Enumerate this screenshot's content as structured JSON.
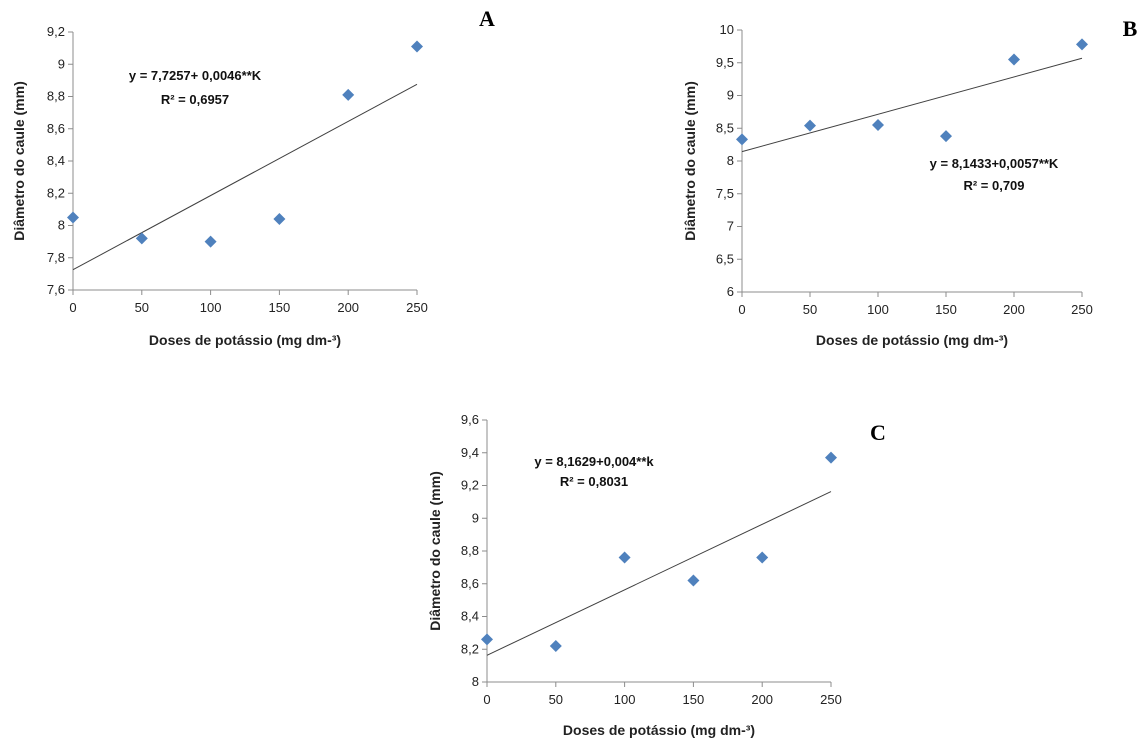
{
  "colors": {
    "marker": "#4f81bd",
    "trendline": "#404040",
    "axis": "#8c8c8c",
    "text": "#222222"
  },
  "chart_data": [
    {
      "type": "scatter",
      "panel": "A",
      "xlabel": "Doses de potássio (mg dm-³)",
      "ylabel": "Diâmetro do caule (mm)",
      "x_ticks": [
        "0",
        "50",
        "100",
        "150",
        "200",
        "250"
      ],
      "y_ticks": [
        "7,6",
        "7,8",
        "8",
        "8,2",
        "8,4",
        "8,6",
        "8,8",
        "9",
        "9,2"
      ],
      "xlim": [
        0,
        250
      ],
      "ylim": [
        7.6,
        9.2
      ],
      "x": [
        0,
        50,
        100,
        150,
        200,
        250
      ],
      "y": [
        8.05,
        7.92,
        7.9,
        8.04,
        8.81,
        9.11
      ],
      "trendline": {
        "intercept": 7.7257,
        "slope": 0.0046
      },
      "equation": "y = 7,7257+ 0,0046**K",
      "r2": "R² = 0,6957",
      "grid": false
    },
    {
      "type": "scatter",
      "panel": "B",
      "xlabel": "Doses de potássio (mg dm-³)",
      "ylabel": "Diâmetro do caule (mm)",
      "x_ticks": [
        "0",
        "50",
        "100",
        "150",
        "200",
        "250"
      ],
      "y_ticks": [
        "6",
        "6,5",
        "7",
        "7,5",
        "8",
        "8,5",
        "9",
        "9,5",
        "10"
      ],
      "xlim": [
        0,
        250
      ],
      "ylim": [
        6,
        10
      ],
      "x": [
        0,
        50,
        100,
        150,
        200,
        250
      ],
      "y": [
        8.33,
        8.54,
        8.55,
        8.38,
        9.55,
        9.78
      ],
      "trendline": {
        "intercept": 8.1433,
        "slope": 0.0057
      },
      "equation": "y = 8,1433+0,0057**K",
      "r2": "R² = 0,709",
      "grid": false
    },
    {
      "type": "scatter",
      "panel": "C",
      "xlabel": "Doses de potássio (mg dm-³)",
      "ylabel": "Diâmetro do caule (mm)",
      "x_ticks": [
        "0",
        "50",
        "100",
        "150",
        "200",
        "250"
      ],
      "y_ticks": [
        "8",
        "8,2",
        "8,4",
        "8,6",
        "8,8",
        "9",
        "9,2",
        "9,4",
        "9,6"
      ],
      "xlim": [
        0,
        250
      ],
      "ylim": [
        8,
        9.6
      ],
      "x": [
        0,
        50,
        100,
        150,
        200,
        250
      ],
      "y": [
        8.26,
        8.22,
        8.76,
        8.62,
        8.76,
        9.37
      ],
      "trendline": {
        "intercept": 8.1629,
        "slope": 0.004
      },
      "equation": "y = 8,1629+0,004**k",
      "r2": "R² = 0,8031",
      "grid": false
    }
  ]
}
